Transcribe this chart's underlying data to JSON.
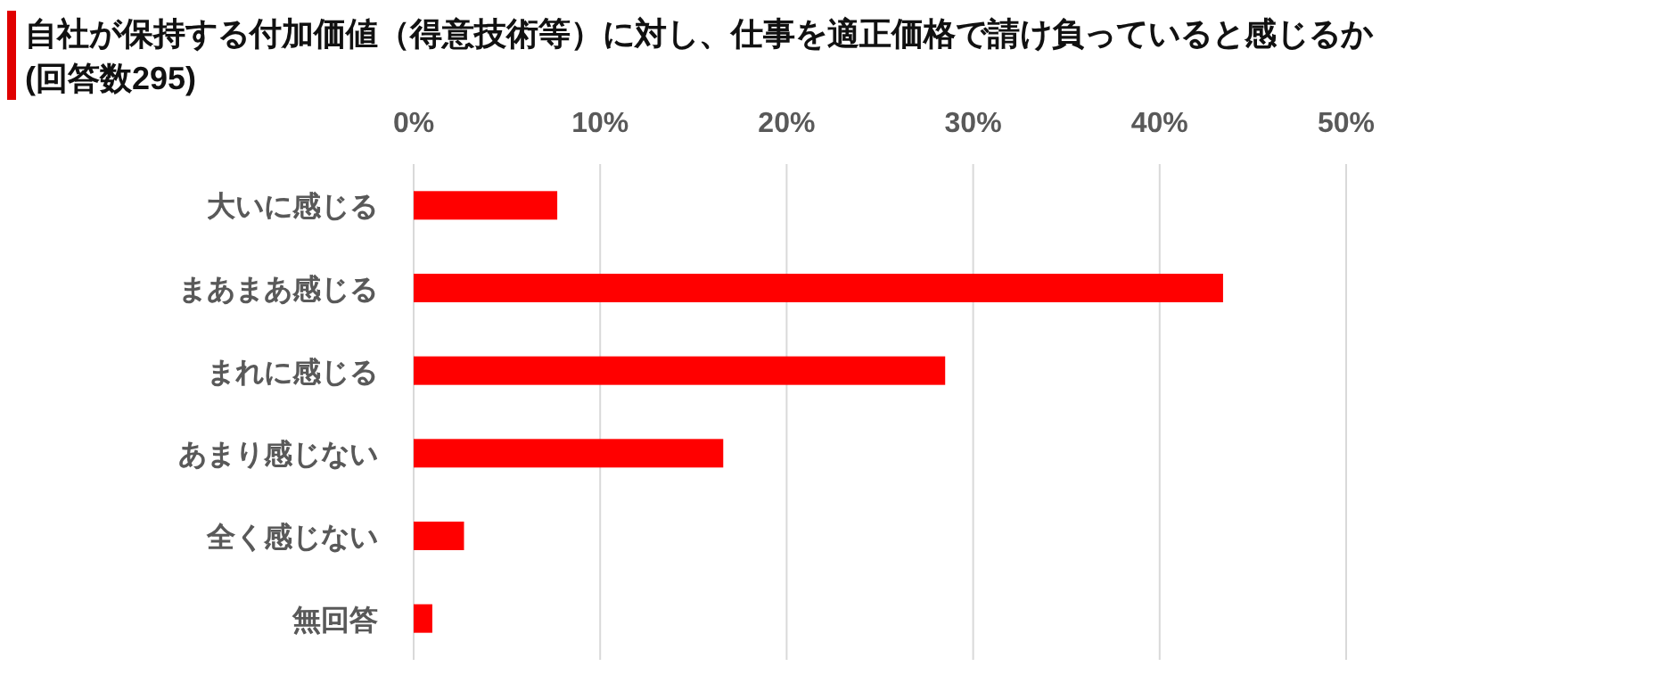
{
  "chart_data": {
    "type": "bar",
    "orientation": "horizontal",
    "title": "自社が保持する付加価値（得意技術等）に対し、仕事を適正価格で請け負っていると感じるか",
    "subtitle": "(回答数295)",
    "categories": [
      "大いに感じる",
      "まあまあ感じる",
      "まれに感じる",
      "あまり感じない",
      "全く感じない",
      "無回答"
    ],
    "values": [
      7.7,
      43.4,
      28.5,
      16.6,
      2.7,
      1.0
    ],
    "color": "#ff0000",
    "xlim": [
      0,
      50
    ],
    "xticks": [
      {
        "value": 0,
        "label": "0%"
      },
      {
        "value": 10,
        "label": "10%"
      },
      {
        "value": 20,
        "label": "20%"
      },
      {
        "value": 30,
        "label": "30%"
      },
      {
        "value": 40,
        "label": "40%"
      },
      {
        "value": 50,
        "label": "50%"
      }
    ],
    "grid": "x"
  }
}
